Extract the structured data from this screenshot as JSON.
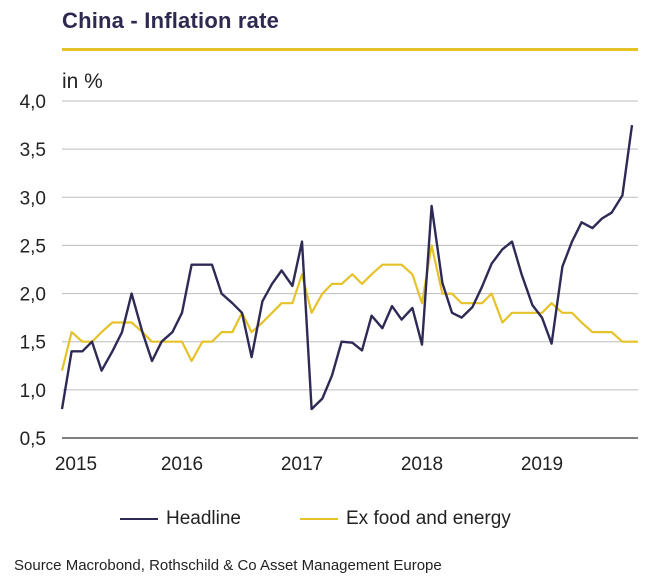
{
  "title": "China - Inflation rate",
  "unit_label": "in %",
  "source": "Source Macrobond, Rothschild & Co Asset Management  Europe",
  "colors": {
    "headline": "#2e2a56",
    "core": "#e6c229",
    "accent": "#e6c229",
    "grid": "#bdbdbd",
    "axis": "#808080"
  },
  "chart_data": {
    "type": "line",
    "title": "China - Inflation rate",
    "ylabel": "in %",
    "ylim": [
      0.5,
      4.0
    ],
    "yticks": [
      "0,5",
      "1,0",
      "1,5",
      "2,0",
      "2,5",
      "3,0",
      "3,5",
      "4,0"
    ],
    "xticks": [
      {
        "label": "2015",
        "x": 2015.0
      },
      {
        "label": "2016",
        "x": 2016.0
      },
      {
        "label": "2017",
        "x": 2017.0
      },
      {
        "label": "2018",
        "x": 2018.0
      },
      {
        "label": "2019",
        "x": 2019.0
      }
    ],
    "xlim": [
      2015.0,
      2019.8
    ],
    "grid": true,
    "legend_position": "bottom",
    "series": [
      {
        "name": "Headline",
        "color": "#2e2a56",
        "points": [
          [
            2015.0,
            0.8
          ],
          [
            2015.08,
            1.4
          ],
          [
            2015.17,
            1.4
          ],
          [
            2015.25,
            1.5
          ],
          [
            2015.33,
            1.2
          ],
          [
            2015.42,
            1.4
          ],
          [
            2015.5,
            1.6
          ],
          [
            2015.58,
            2.0
          ],
          [
            2015.67,
            1.6
          ],
          [
            2015.75,
            1.3
          ],
          [
            2015.83,
            1.5
          ],
          [
            2015.92,
            1.6
          ],
          [
            2016.0,
            1.8
          ],
          [
            2016.08,
            2.3
          ],
          [
            2016.17,
            2.3
          ],
          [
            2016.25,
            2.3
          ],
          [
            2016.33,
            2.0
          ],
          [
            2016.42,
            1.9
          ],
          [
            2016.5,
            1.8
          ],
          [
            2016.58,
            1.34
          ],
          [
            2016.67,
            1.92
          ],
          [
            2016.75,
            2.1
          ],
          [
            2016.83,
            2.24
          ],
          [
            2016.92,
            2.08
          ],
          [
            2017.0,
            2.54
          ],
          [
            2017.08,
            0.8
          ],
          [
            2017.17,
            0.91
          ],
          [
            2017.25,
            1.15
          ],
          [
            2017.33,
            1.5
          ],
          [
            2017.42,
            1.49
          ],
          [
            2017.5,
            1.41
          ],
          [
            2017.58,
            1.77
          ],
          [
            2017.67,
            1.64
          ],
          [
            2017.75,
            1.87
          ],
          [
            2017.83,
            1.73
          ],
          [
            2017.92,
            1.85
          ],
          [
            2018.0,
            1.47
          ],
          [
            2018.08,
            2.91
          ],
          [
            2018.17,
            2.11
          ],
          [
            2018.25,
            1.8
          ],
          [
            2018.33,
            1.75
          ],
          [
            2018.42,
            1.86
          ],
          [
            2018.5,
            2.07
          ],
          [
            2018.58,
            2.31
          ],
          [
            2018.67,
            2.46
          ],
          [
            2018.75,
            2.54
          ],
          [
            2018.83,
            2.2
          ],
          [
            2018.92,
            1.88
          ],
          [
            2019.0,
            1.75
          ],
          [
            2019.08,
            1.48
          ],
          [
            2019.17,
            2.28
          ],
          [
            2019.25,
            2.54
          ],
          [
            2019.33,
            2.74
          ],
          [
            2019.42,
            2.68
          ],
          [
            2019.5,
            2.78
          ],
          [
            2019.58,
            2.84
          ],
          [
            2019.67,
            3.02
          ],
          [
            2019.75,
            3.75
          ]
        ]
      },
      {
        "name": "Ex food and energy",
        "color": "#e6c229",
        "points": [
          [
            2015.0,
            1.2
          ],
          [
            2015.08,
            1.6
          ],
          [
            2015.17,
            1.5
          ],
          [
            2015.25,
            1.5
          ],
          [
            2015.33,
            1.6
          ],
          [
            2015.42,
            1.7
          ],
          [
            2015.5,
            1.7
          ],
          [
            2015.58,
            1.7
          ],
          [
            2015.67,
            1.6
          ],
          [
            2015.75,
            1.5
          ],
          [
            2015.83,
            1.5
          ],
          [
            2015.92,
            1.5
          ],
          [
            2016.0,
            1.5
          ],
          [
            2016.08,
            1.3
          ],
          [
            2016.17,
            1.5
          ],
          [
            2016.25,
            1.5
          ],
          [
            2016.33,
            1.6
          ],
          [
            2016.42,
            1.6
          ],
          [
            2016.5,
            1.8
          ],
          [
            2016.58,
            1.6
          ],
          [
            2016.67,
            1.7
          ],
          [
            2016.75,
            1.8
          ],
          [
            2016.83,
            1.9
          ],
          [
            2016.92,
            1.9
          ],
          [
            2017.0,
            2.2
          ],
          [
            2017.08,
            1.8
          ],
          [
            2017.17,
            2.0
          ],
          [
            2017.25,
            2.1
          ],
          [
            2017.33,
            2.1
          ],
          [
            2017.42,
            2.2
          ],
          [
            2017.5,
            2.1
          ],
          [
            2017.58,
            2.2
          ],
          [
            2017.67,
            2.3
          ],
          [
            2017.75,
            2.3
          ],
          [
            2017.83,
            2.3
          ],
          [
            2017.92,
            2.2
          ],
          [
            2018.0,
            1.9
          ],
          [
            2018.08,
            2.5
          ],
          [
            2018.17,
            2.0
          ],
          [
            2018.25,
            2.0
          ],
          [
            2018.33,
            1.9
          ],
          [
            2018.42,
            1.9
          ],
          [
            2018.5,
            1.9
          ],
          [
            2018.58,
            2.0
          ],
          [
            2018.67,
            1.7
          ],
          [
            2018.75,
            1.8
          ],
          [
            2018.83,
            1.8
          ],
          [
            2018.92,
            1.8
          ],
          [
            2019.0,
            1.8
          ],
          [
            2019.08,
            1.9
          ],
          [
            2019.17,
            1.8
          ],
          [
            2019.25,
            1.8
          ],
          [
            2019.33,
            1.7
          ],
          [
            2019.42,
            1.6
          ],
          [
            2019.5,
            1.6
          ],
          [
            2019.58,
            1.6
          ],
          [
            2019.67,
            1.5
          ],
          [
            2019.75,
            1.5
          ],
          [
            2019.8,
            1.5
          ]
        ]
      }
    ]
  }
}
